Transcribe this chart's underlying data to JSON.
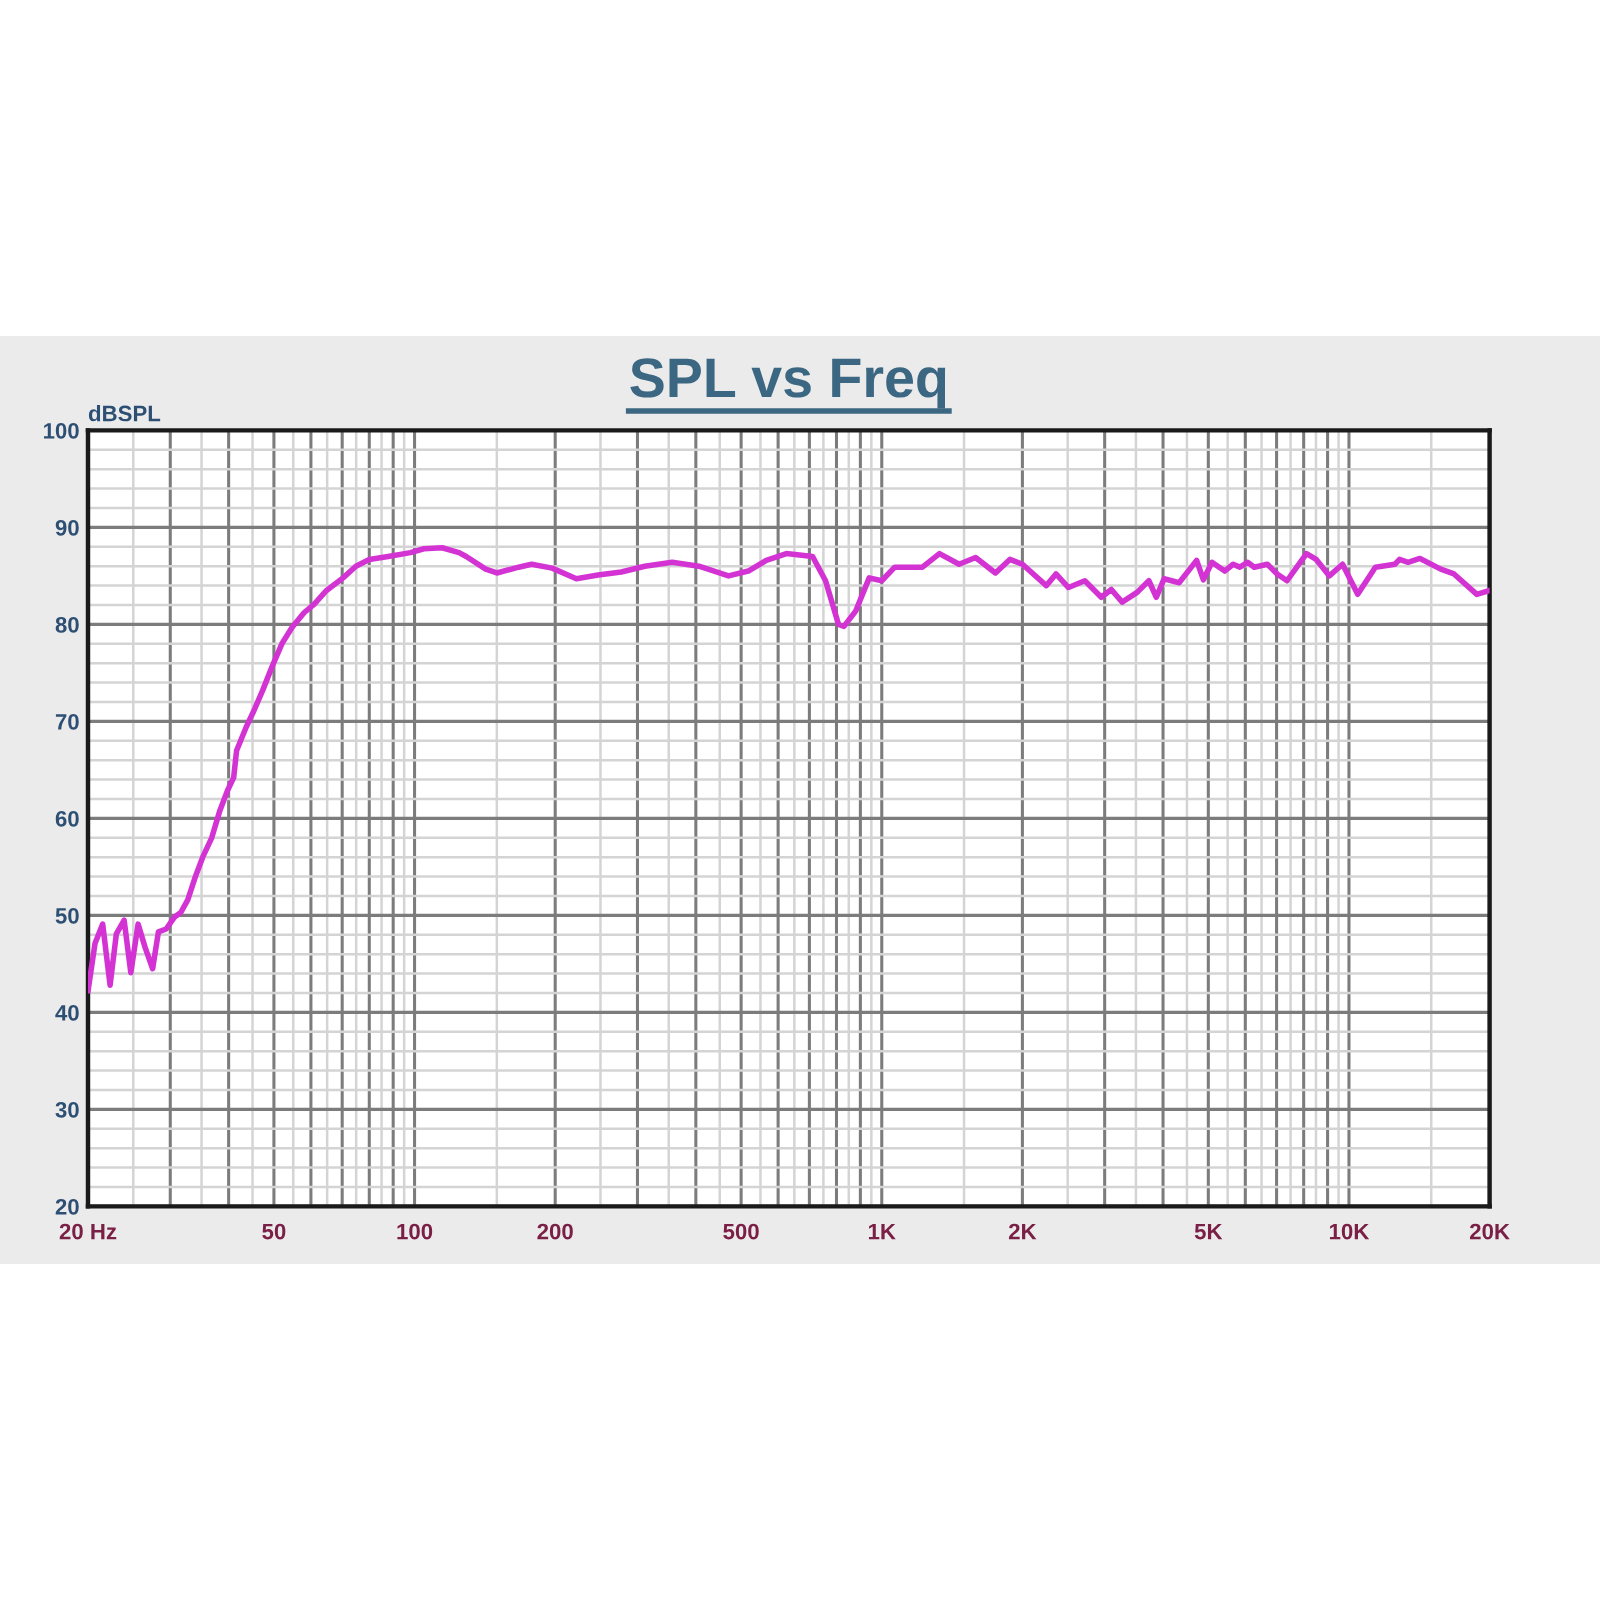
{
  "chart_data": {
    "type": "line",
    "title": "SPL vs Freq",
    "ylabel": "dBSPL",
    "log": "x",
    "grid": true,
    "color": "#d433d4",
    "x": [
      20,
      20.7,
      21.5,
      22.3,
      23,
      23.9,
      24.7,
      25.6,
      26.5,
      27.5,
      28.3,
      29.4,
      30.6,
      31.6,
      32.7,
      33.9,
      35.2,
      36.8,
      38.3,
      39.8,
      41,
      41.6,
      43.6,
      45.3,
      47.3,
      49.6,
      52,
      54.7,
      58,
      61,
      64.8,
      70.3,
      74.9,
      80,
      87.8,
      98,
      104.7,
      114.5,
      124.5,
      129,
      142,
      150,
      167,
      178,
      197,
      222,
      247,
      277,
      311,
      356,
      406,
      470,
      518,
      566,
      625,
      711,
      758,
      808,
      830,
      880,
      940,
      1000,
      1066,
      1222,
      1329,
      1464,
      1588,
      1751,
      1880,
      2000,
      2250,
      2360,
      2510,
      2720,
      2950,
      3100,
      3270,
      3520,
      3730,
      3870,
      4020,
      4330,
      4720,
      4880,
      5090,
      5420,
      5650,
      5840,
      6070,
      6270,
      6690,
      7020,
      7370,
      8110,
      8510,
      9080,
      9690,
      10440,
      11390,
      12540,
      12830,
      13380,
      14190,
      15720,
      16780,
      18780,
      20000
    ],
    "values": [
      42.2,
      47.1,
      49.1,
      42.8,
      48.1,
      49.5,
      44.1,
      49.1,
      46.7,
      44.5,
      48.3,
      48.6,
      49.8,
      50.3,
      51.6,
      53.9,
      56.0,
      58.0,
      60.8,
      62.9,
      64.2,
      67.0,
      69.4,
      71.1,
      73.2,
      75.7,
      78.0,
      79.7,
      81.2,
      82.1,
      83.5,
      84.8,
      86.0,
      86.7,
      87.0,
      87.4,
      87.8,
      87.9,
      87.4,
      87.0,
      85.7,
      85.3,
      85.9,
      86.2,
      85.8,
      84.7,
      85.1,
      85.4,
      86.0,
      86.4,
      86.0,
      85.0,
      85.5,
      86.6,
      87.3,
      87.0,
      84.5,
      80.0,
      79.8,
      81.4,
      84.8,
      84.5,
      85.9,
      85.9,
      87.3,
      86.2,
      86.9,
      85.3,
      86.7,
      86.2,
      84.0,
      85.2,
      83.8,
      84.5,
      82.8,
      83.6,
      82.3,
      83.3,
      84.5,
      82.8,
      84.7,
      84.3,
      86.6,
      84.6,
      86.4,
      85.5,
      86.2,
      85.9,
      86.4,
      85.9,
      86.2,
      85.2,
      84.5,
      87.3,
      86.7,
      85.0,
      86.2,
      83.1,
      85.9,
      86.2,
      86.7,
      86.4,
      86.8,
      85.7,
      85.2,
      83.1,
      83.5
    ],
    "xlim": [
      20,
      20000
    ],
    "xticks": [
      {
        "value": 20,
        "label": "20 Hz"
      },
      {
        "value": 30,
        "label": null
      },
      {
        "value": 40,
        "label": null
      },
      50,
      {
        "value": 60,
        "label": null
      },
      {
        "value": 70,
        "label": null
      },
      {
        "value": 80,
        "label": null
      },
      {
        "value": 90,
        "label": null
      },
      100,
      200,
      {
        "value": 300,
        "label": null
      },
      {
        "value": 400,
        "label": null
      },
      500,
      {
        "value": 600,
        "label": null
      },
      {
        "value": 700,
        "label": null
      },
      {
        "value": 800,
        "label": null
      },
      {
        "value": 900,
        "label": null
      },
      {
        "value": 1000,
        "label": "1K"
      },
      {
        "value": 2000,
        "label": "2K"
      },
      {
        "value": 3000,
        "label": null
      },
      {
        "value": 4000,
        "label": null
      },
      {
        "value": 5000,
        "label": "5K"
      },
      {
        "value": 6000,
        "label": null
      },
      {
        "value": 7000,
        "label": null
      },
      {
        "value": 8000,
        "label": null
      },
      {
        "value": 9000,
        "label": null
      },
      {
        "value": 10000,
        "label": "10K"
      },
      {
        "value": 20000,
        "label": "20K"
      }
    ],
    "ylim": [
      20,
      100
    ],
    "yticks": [
      20,
      30,
      40,
      50,
      60,
      70,
      80,
      90,
      100
    ]
  }
}
